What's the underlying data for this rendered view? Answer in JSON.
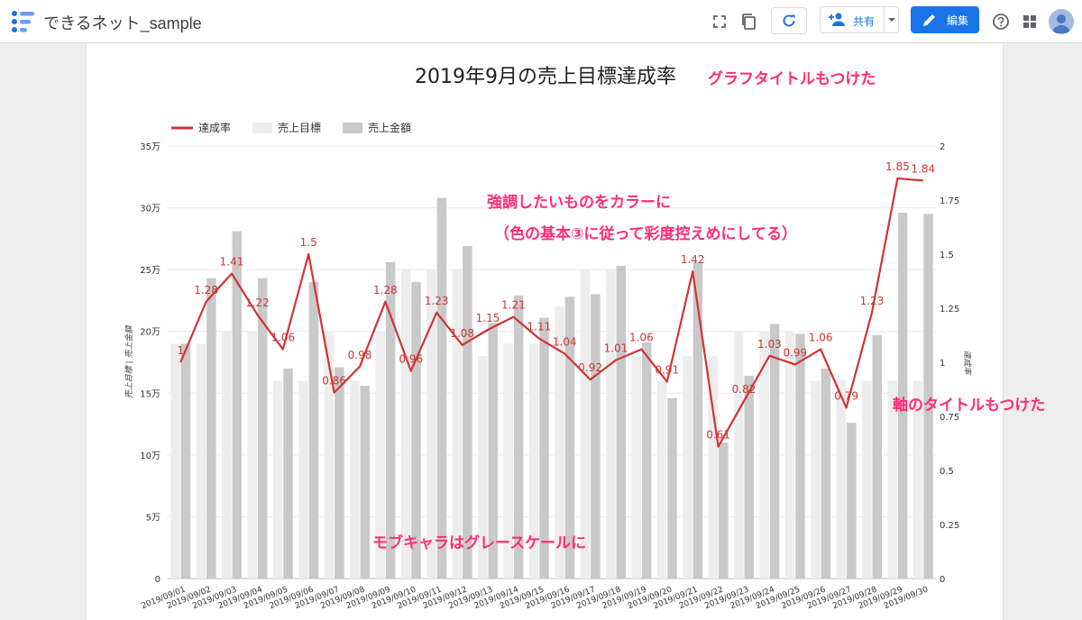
{
  "app": {
    "title": "できるネット_sample",
    "share_label": "共有",
    "edit_label": "編集"
  },
  "report": {
    "chart_title": "2019年9月の売上目標達成率",
    "legend": [
      "達成率",
      "売上目標",
      "売上金額"
    ],
    "y_left_title": "売上目標 | 売上金額",
    "y_right_title": "達成率"
  },
  "annotations": {
    "title_note": "グラフタイトルもつけた",
    "color_note_1": "強調したいものをカラーに",
    "color_note_2": "（色の基本③に従って彩度控えめにしてる）",
    "axis_note": "軸のタイトルもつけた",
    "gray_note": "モブキャラはグレースケールに"
  },
  "colors": {
    "line": "#cf3535",
    "target_bar": "#ededed",
    "sales_bar": "#c9c9c9",
    "annotation": "#ff2d77",
    "accent": "#1a73e8"
  },
  "chart_data": {
    "type": "bar+line",
    "title": "2019年9月の売上目標達成率",
    "categories": [
      "2019/09/01",
      "2019/09/02",
      "2019/09/03",
      "2019/09/04",
      "2019/09/05",
      "2019/09/06",
      "2019/09/07",
      "2019/09/08",
      "2019/09/09",
      "2019/09/10",
      "2019/09/11",
      "2019/09/12",
      "2019/09/13",
      "2019/09/14",
      "2019/09/15",
      "2019/09/16",
      "2019/09/17",
      "2019/09/18",
      "2019/09/19",
      "2019/09/20",
      "2019/09/21",
      "2019/09/22",
      "2019/09/23",
      "2019/09/24",
      "2019/09/25",
      "2019/09/26",
      "2019/09/27",
      "2019/09/28",
      "2019/09/29",
      "2019/09/30"
    ],
    "series": [
      {
        "name": "売上目標",
        "type": "bar",
        "axis": "left",
        "values": [
          190000,
          190000,
          200000,
          200000,
          160000,
          160000,
          200000,
          160000,
          200000,
          250000,
          250000,
          250000,
          180000,
          190000,
          190000,
          220000,
          250000,
          250000,
          180000,
          160000,
          180000,
          180000,
          200000,
          200000,
          200000,
          160000,
          160000,
          160000,
          160000,
          160000
        ]
      },
      {
        "name": "売上金額",
        "type": "bar",
        "axis": "left",
        "values": [
          190000,
          243000,
          281000,
          243000,
          170000,
          240000,
          171000,
          156000,
          256000,
          240000,
          308000,
          269000,
          207000,
          229000,
          211000,
          228000,
          230000,
          253000,
          191000,
          146000,
          256000,
          110000,
          164000,
          206000,
          198000,
          170000,
          126000,
          197000,
          296000,
          295000
        ]
      },
      {
        "name": "達成率",
        "type": "line",
        "axis": "right",
        "values": [
          1,
          1.28,
          1.41,
          1.22,
          1.06,
          1.5,
          0.86,
          0.98,
          1.28,
          0.96,
          1.23,
          1.08,
          1.15,
          1.21,
          1.11,
          1.04,
          0.92,
          1.01,
          1.06,
          0.91,
          1.42,
          0.61,
          0.82,
          1.03,
          0.99,
          1.06,
          0.79,
          1.23,
          1.85,
          1.84
        ]
      }
    ],
    "y_left": {
      "min": 0,
      "max": 350000,
      "ticks": [
        "0",
        "5万",
        "10万",
        "15万",
        "20万",
        "25万",
        "30万",
        "35万"
      ]
    },
    "y_right": {
      "min": 0,
      "max": 2,
      "ticks": [
        "0",
        "0.25",
        "0.5",
        "0.75",
        "1",
        "1.25",
        "1.5",
        "1.75",
        "2"
      ]
    },
    "ylabel_left": "売上目標 | 売上金額",
    "ylabel_right": "達成率",
    "legend_position": "top-left",
    "grid": true
  }
}
